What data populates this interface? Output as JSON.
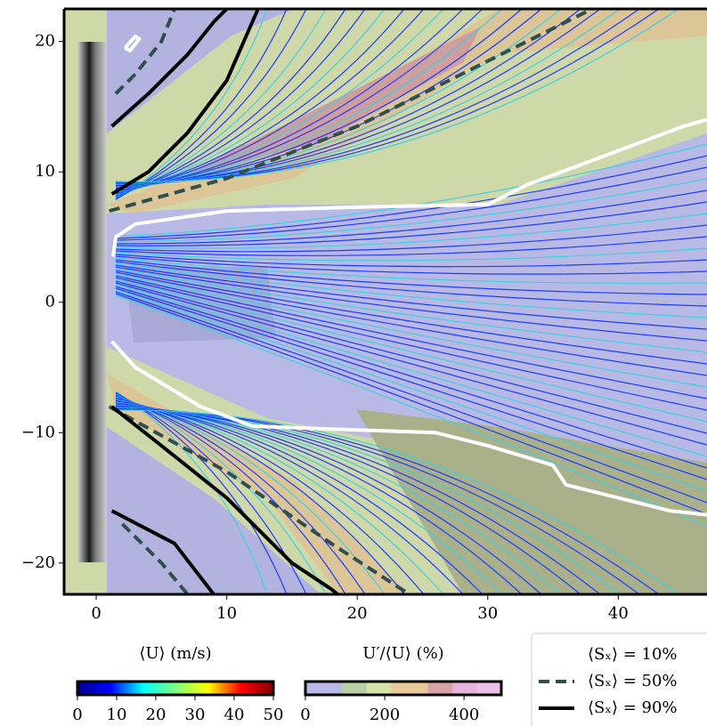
{
  "chart_data": {
    "type": "contour",
    "xlim": [
      -2.46,
      46.8
    ],
    "ylim": [
      -22.4,
      22.5
    ],
    "xticks": [
      0,
      10,
      20,
      30,
      40
    ],
    "yticks": [
      {
        "value": -20,
        "label": "−20"
      },
      {
        "value": -10,
        "label": "−10"
      },
      0,
      10,
      20
    ],
    "series": [
      {
        "name": "⟨Sₓ⟩ = 10%",
        "color": "#ffffff",
        "dash": "solid",
        "x": [
          1.3,
          1.5,
          3,
          10,
          20,
          30,
          33,
          37,
          41,
          45,
          46.8,
          null,
          1.2,
          3,
          8,
          12,
          20,
          26,
          30,
          35,
          36,
          40,
          44,
          46.8,
          null,
          2.2,
          3,
          3.3,
          2.6,
          2.2
        ],
        "y": [
          3.5,
          5,
          6,
          7,
          7.3,
          7.5,
          9,
          10.5,
          12,
          13.5,
          14,
          null,
          -3,
          -5,
          -8,
          -9.5,
          -9.8,
          -10,
          -11,
          -12.5,
          -14,
          -15,
          -16,
          -16.3,
          null,
          19.5,
          20.4,
          20.2,
          19.3,
          19.5
        ]
      },
      {
        "name": "⟨Sₓ⟩ = 50%",
        "color": "#2f4f4f",
        "dash": "dashed",
        "x": [
          1,
          10,
          20,
          30,
          38,
          null,
          1.5,
          3,
          5,
          6,
          null,
          1,
          10,
          18,
          24,
          null,
          2,
          5,
          7
        ],
        "y": [
          7,
          9.5,
          13.5,
          18.5,
          22.5,
          null,
          16,
          17.5,
          20,
          22.5,
          null,
          -8,
          -13,
          -18.5,
          -22.4,
          null,
          -17,
          -20,
          -22.4
        ]
      },
      {
        "name": "⟨Sₓ⟩ = 90%",
        "color": "#000000",
        "dash": "solid",
        "x": [
          1.2,
          4,
          7,
          10,
          12.4,
          null,
          1.2,
          4,
          7,
          9,
          10,
          null,
          1.2,
          5,
          10,
          15,
          18,
          18.5,
          null,
          1.2,
          6,
          9
        ],
        "y": [
          8.3,
          10,
          13,
          17,
          22.5,
          null,
          13.5,
          16,
          19,
          21.5,
          22.5,
          null,
          -8,
          -11,
          -15,
          -20,
          -22,
          -22.4,
          null,
          -16,
          -18.5,
          -22.4
        ]
      }
    ],
    "colorbars": [
      {
        "label": "⟨U⟩ (m/s)",
        "lim": [
          0,
          50
        ],
        "ticks": [
          0,
          10,
          20,
          30,
          40,
          50
        ],
        "colors": [
          "#00008f",
          "#0000ff",
          "#00ffff",
          "#7fff7f",
          "#ffff00",
          "#ff0000",
          "#800000"
        ]
      },
      {
        "label": "U′/⟨U⟩ (%)",
        "lim": [
          0,
          494
        ],
        "ticks": [
          0,
          200,
          400
        ],
        "colors": [
          "#b9b9e6",
          "#b8cfa3",
          "#d8e3a8",
          "#e8c99a",
          "#d9a2a6",
          "#e4b3d8",
          "#e9c1e9"
        ]
      }
    ]
  }
}
